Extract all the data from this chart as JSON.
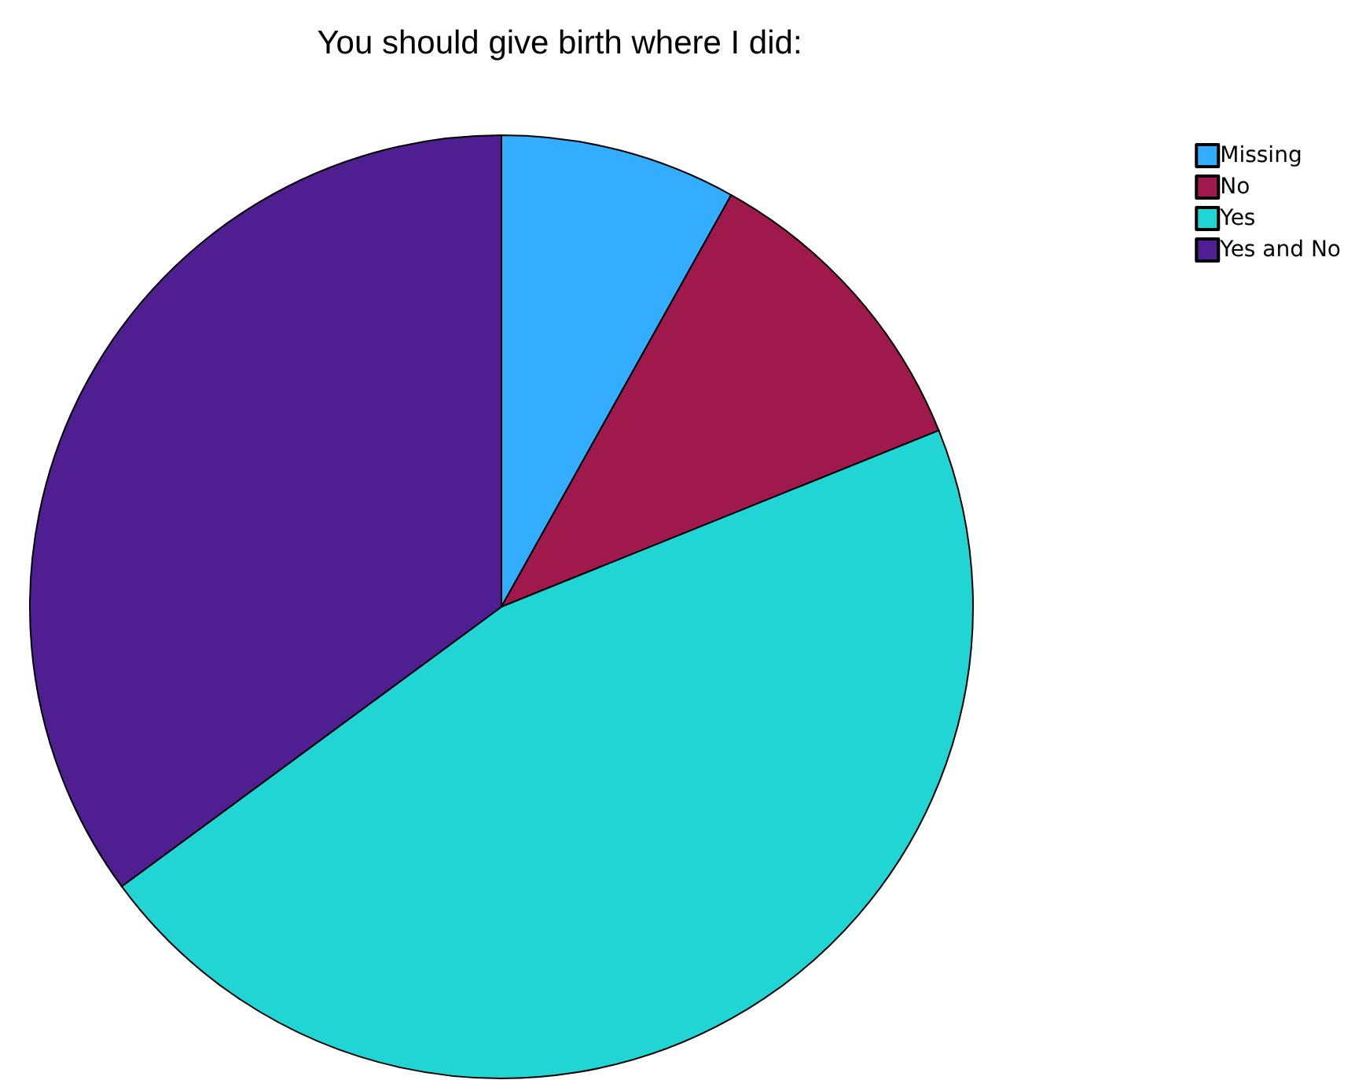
{
  "chart_data": {
    "type": "pie",
    "title": "You should give birth where I did:",
    "categories": [
      "Missing",
      "No",
      "Yes",
      "Yes and No"
    ],
    "values": [
      8.1,
      10.8,
      46.0,
      35.1
    ],
    "colors": [
      "#33adff",
      "#a0194c",
      "#21d5d5",
      "#4f1f91"
    ],
    "legend": "top right"
  }
}
